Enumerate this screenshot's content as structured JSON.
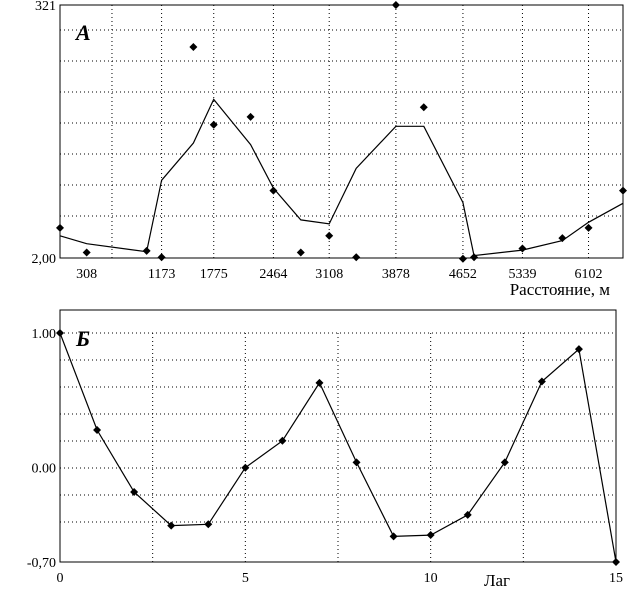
{
  "chart_data": [
    {
      "type": "scatter",
      "panel_label": "А",
      "xlabel": "Расстояние, м",
      "ylabel": "",
      "xlim": [
        0,
        6500
      ],
      "ylim": [
        2.0,
        321
      ],
      "x_tick_values": [
        308,
        1173,
        1775,
        2464,
        3108,
        3878,
        4652,
        5339,
        6102
      ],
      "x_tick_labels": [
        "308",
        "1173",
        "1775",
        "2464",
        "3108",
        "3878",
        "4652",
        "5339",
        "6102"
      ],
      "y_tick_values": [
        2.0,
        321
      ],
      "y_tick_labels": [
        "2,00",
        "321"
      ],
      "grid": true,
      "series": [
        {
          "kind": "points",
          "x": [
            0,
            308,
            1000,
            1173,
            1540,
            1775,
            2200,
            2464,
            2780,
            3108,
            3420,
            3878,
            4200,
            4652,
            4780,
            5339,
            5800,
            6102,
            6500
          ],
          "y": [
            40,
            9,
            11,
            3,
            268,
            170,
            180,
            87,
            9,
            30,
            3,
            321,
            192,
            1,
            3,
            14,
            27,
            40,
            87
          ]
        },
        {
          "kind": "line",
          "x": [
            0,
            308,
            1000,
            1173,
            1540,
            1775,
            2200,
            2464,
            2780,
            3108,
            3420,
            3878,
            4200,
            4652,
            4780,
            5339,
            5800,
            6102,
            6500
          ],
          "y": [
            30,
            20,
            10,
            100,
            147,
            202,
            145,
            90,
            50,
            45,
            115,
            168,
            168,
            72,
            5,
            12,
            24,
            47,
            71
          ]
        }
      ]
    },
    {
      "type": "line",
      "panel_label": "Б",
      "xlabel": "Лаг",
      "ylabel": "",
      "xlim": [
        0,
        15
      ],
      "ylim": [
        -0.7,
        1.0
      ],
      "x_tick_values": [
        0,
        5,
        10,
        15
      ],
      "x_tick_labels": [
        "0",
        "5",
        "10",
        "15"
      ],
      "y_tick_values": [
        1.0,
        0.0,
        -0.7
      ],
      "y_tick_labels": [
        "1.00",
        "0.00",
        "-0,70"
      ],
      "grid": true,
      "series": [
        {
          "x": [
            0,
            1,
            2,
            3,
            4,
            5,
            6,
            7,
            8,
            9,
            10,
            11,
            12,
            13,
            14,
            15
          ],
          "y": [
            1.0,
            0.28,
            -0.18,
            -0.43,
            -0.42,
            0.0,
            0.2,
            0.63,
            0.04,
            -0.51,
            -0.5,
            -0.35,
            0.04,
            0.64,
            0.88,
            -0.7
          ]
        }
      ]
    }
  ]
}
